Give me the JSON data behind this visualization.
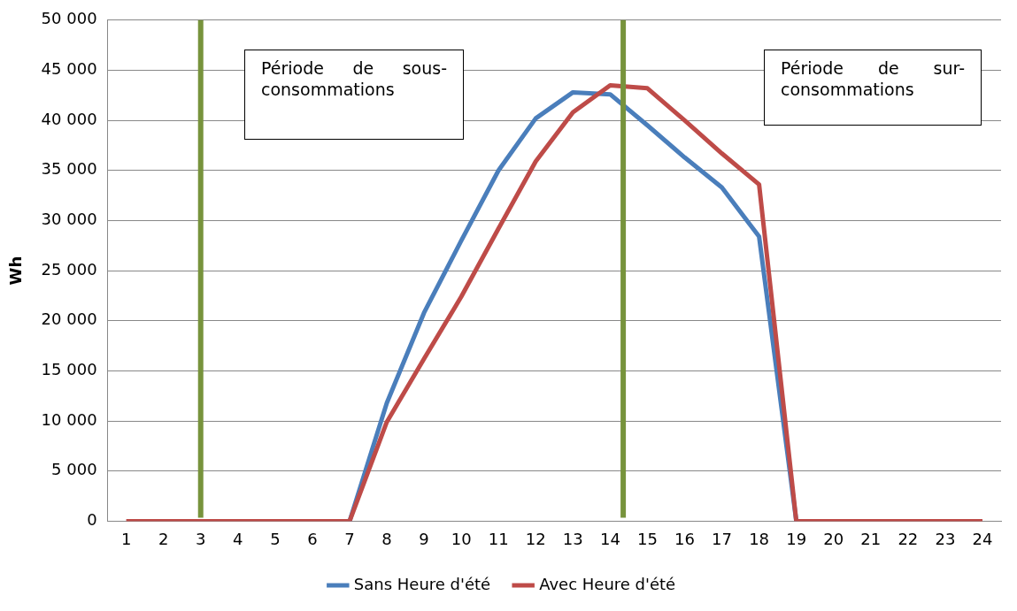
{
  "chart_data": {
    "type": "line",
    "ylabel": "Wh",
    "x": [
      1,
      2,
      3,
      4,
      5,
      6,
      7,
      8,
      9,
      10,
      11,
      12,
      13,
      14,
      15,
      16,
      17,
      18,
      19,
      20,
      21,
      22,
      23,
      24
    ],
    "xlim": [
      0.5,
      24.5
    ],
    "xticks": [
      1,
      2,
      3,
      4,
      5,
      6,
      7,
      8,
      9,
      10,
      11,
      12,
      13,
      14,
      15,
      16,
      17,
      18,
      19,
      20,
      21,
      22,
      23,
      24
    ],
    "ylim": [
      0,
      50000
    ],
    "yticks": [
      {
        "value": 0,
        "label": "0"
      },
      {
        "value": 5000,
        "label": "5 000"
      },
      {
        "value": 10000,
        "label": "10 000"
      },
      {
        "value": 15000,
        "label": "15 000"
      },
      {
        "value": 20000,
        "label": "20 000"
      },
      {
        "value": 25000,
        "label": "25 000"
      },
      {
        "value": 30000,
        "label": "30 000"
      },
      {
        "value": 35000,
        "label": "35 000"
      },
      {
        "value": 40000,
        "label": "40 000"
      },
      {
        "value": 45000,
        "label": "45 000"
      },
      {
        "value": 50000,
        "label": "50 000"
      }
    ],
    "series": [
      {
        "name": "Sans Heure d'été",
        "color": "#4a7ebb",
        "values": [
          null,
          null,
          null,
          null,
          null,
          null,
          0,
          11800,
          20800,
          28000,
          35000,
          40200,
          42800,
          42600,
          39500,
          36300,
          33300,
          28400,
          0,
          null,
          null,
          null,
          null,
          null
        ]
      },
      {
        "name": "Avec Heure d'été",
        "color": "#be4b48",
        "values": [
          0,
          0,
          0,
          0,
          0,
          0,
          0,
          9900,
          16200,
          22400,
          29200,
          35900,
          40800,
          43500,
          43200,
          40000,
          36700,
          33600,
          0,
          0,
          0,
          0,
          0,
          0
        ]
      }
    ],
    "ref_lines": [
      {
        "axis": "x",
        "value": 3,
        "color": "#77933c"
      },
      {
        "axis": "x",
        "value": 14.35,
        "color": "#77933c"
      }
    ],
    "annotations": [
      "Période de sous-consommations",
      "Période de sur-consommations"
    ],
    "grid": "y",
    "legend": "bottom",
    "marker": "none",
    "line_style": "solid"
  }
}
